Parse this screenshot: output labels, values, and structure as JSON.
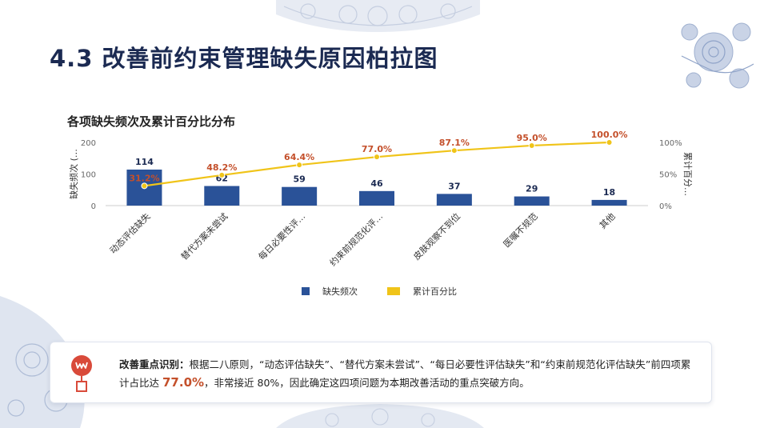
{
  "page": {
    "title": "4.3 改善前约束管理缺失原因柏拉图"
  },
  "chart_data": {
    "type": "bar",
    "title": "各项缺失频次及累计百分比分布",
    "categories": [
      "动态评估缺失",
      "替代方案未尝试",
      "每日必要性评…",
      "约束前规范化评…",
      "皮肤观察不到位",
      "医嘱不规范",
      "其他"
    ],
    "series": [
      {
        "name": "缺失频次",
        "type": "bar",
        "axis": "left",
        "color": "#2a5298",
        "values": [
          114,
          62,
          59,
          46,
          37,
          29,
          18
        ]
      },
      {
        "name": "累计百分比",
        "type": "line",
        "axis": "right",
        "color": "#f0c419",
        "values": [
          31.2,
          48.2,
          64.4,
          77.0,
          87.1,
          95.0,
          100.0
        ]
      }
    ],
    "bar_labels": [
      "114",
      "62",
      "59",
      "46",
      "37",
      "29",
      "18"
    ],
    "line_labels": [
      "31.2%",
      "48.2%",
      "64.4%",
      "77.0%",
      "87.1%",
      "95.0%",
      "100.0%"
    ],
    "ylabel": "缺失频次 (…",
    "y2label": "累计百分…",
    "ylim": [
      0,
      200
    ],
    "y2lim": [
      0,
      100
    ],
    "yticks": [
      "0",
      "100",
      "200"
    ],
    "y2ticks": [
      "0%",
      "50%",
      "100%"
    ],
    "legend_position": "bottom",
    "grid": false
  },
  "note": {
    "lead": "改善重点识别：",
    "text_before": "根据二八原则，“动态评估缺失”、“替代方案未尝试”、“每日必要性评估缺失”和“约束前规范化评估缺失”前四项累计占比达",
    "highlight": "77.0%",
    "text_after": "，非常接近 80%，因此确定这四项问题为本期改善活动的重点突破方向。"
  },
  "colors": {
    "title": "#1b2a52",
    "bar": "#2a5298",
    "line": "#f0c419",
    "highlight": "#c4502b",
    "icon": "#d94a3a"
  }
}
